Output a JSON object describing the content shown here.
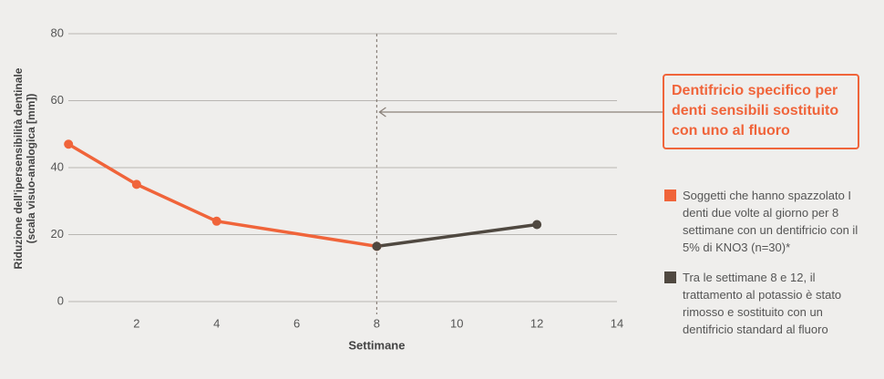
{
  "chart_data": {
    "type": "line",
    "y_label": [
      "Riduzione dell'ipersensibilità dentinale",
      "(scala visuo-analogica [mm])"
    ],
    "x_label": "Settimane",
    "x": [
      0.3,
      2,
      4,
      8,
      12
    ],
    "series": [
      {
        "name": "Soggetti che hanno spazzolato I denti due volte al giorno per 8 settimane con un dentifricio con il 5% di KNO3 (n=30)*",
        "color": "#f0643a",
        "values": [
          47,
          35,
          24,
          16.5,
          null
        ]
      },
      {
        "name": "Tra le settimane 8 e 12, il trattamento al potassio è stato rimosso e sostituito con un dentifricio standard al fluoro",
        "color": "#4f4840",
        "values": [
          null,
          null,
          null,
          16.5,
          23
        ]
      }
    ],
    "xlim": [
      0,
      14
    ],
    "xticks": [
      2,
      4,
      6,
      8,
      10,
      12,
      14
    ],
    "ylim": [
      0,
      80
    ],
    "yticks": [
      0,
      20,
      40,
      60,
      80
    ],
    "grid": true,
    "vline": 8,
    "annotation": "Dentifricio specifico per denti sensibili sostituito con uno al fluoro"
  }
}
